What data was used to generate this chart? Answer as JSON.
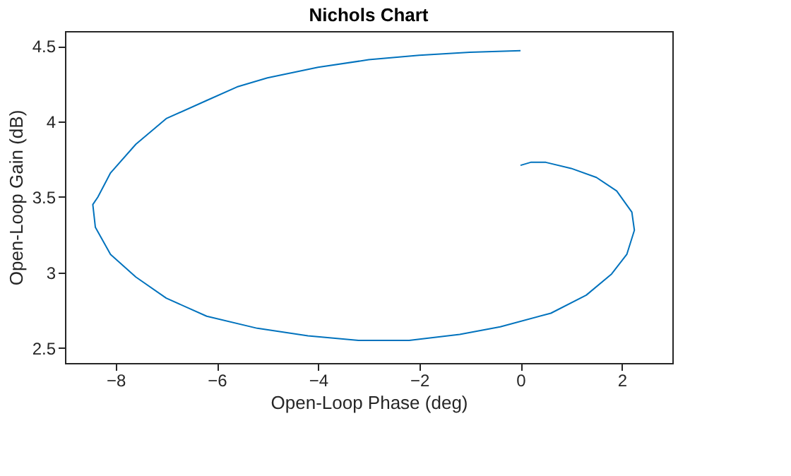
{
  "chart_data": {
    "type": "line",
    "title": "Nichols Chart",
    "xlabel": "Open-Loop Phase (deg)",
    "ylabel": "Open-Loop Gain (dB)",
    "series": [
      {
        "color": "#0072bd",
        "x": [
          0,
          -1,
          -2,
          -3,
          -4,
          -5,
          -5.6,
          -6.2,
          -7,
          -7.6,
          -8.1,
          -8.35,
          -8.45,
          -8.4,
          -8.1,
          -7.6,
          -7,
          -6.2,
          -5.2,
          -4.2,
          -3.2,
          -2.2,
          -1.2,
          -0.4,
          0.6,
          1.3,
          1.8,
          2.1,
          2.25,
          2.2,
          1.9,
          1.5,
          1,
          0.5,
          0.2,
          0
        ],
        "values": [
          4.47,
          4.46,
          4.44,
          4.41,
          4.36,
          4.29,
          4.23,
          4.14,
          4.02,
          3.85,
          3.66,
          3.5,
          3.45,
          3.3,
          3.12,
          2.97,
          2.83,
          2.71,
          2.63,
          2.58,
          2.55,
          2.55,
          2.59,
          2.64,
          2.73,
          2.85,
          2.99,
          3.12,
          3.28,
          3.4,
          3.54,
          3.63,
          3.69,
          3.73,
          3.73,
          3.71
        ]
      }
    ],
    "xlim": [
      -9,
      3
    ],
    "xticks": [
      -8,
      -6,
      -4,
      -2,
      0,
      2
    ],
    "ylim": [
      2.4,
      4.6
    ],
    "yticks": [
      2.5,
      3,
      3.5,
      4,
      4.5
    ],
    "grid": false,
    "marker": "none",
    "line_style": "solid",
    "legend": false
  }
}
